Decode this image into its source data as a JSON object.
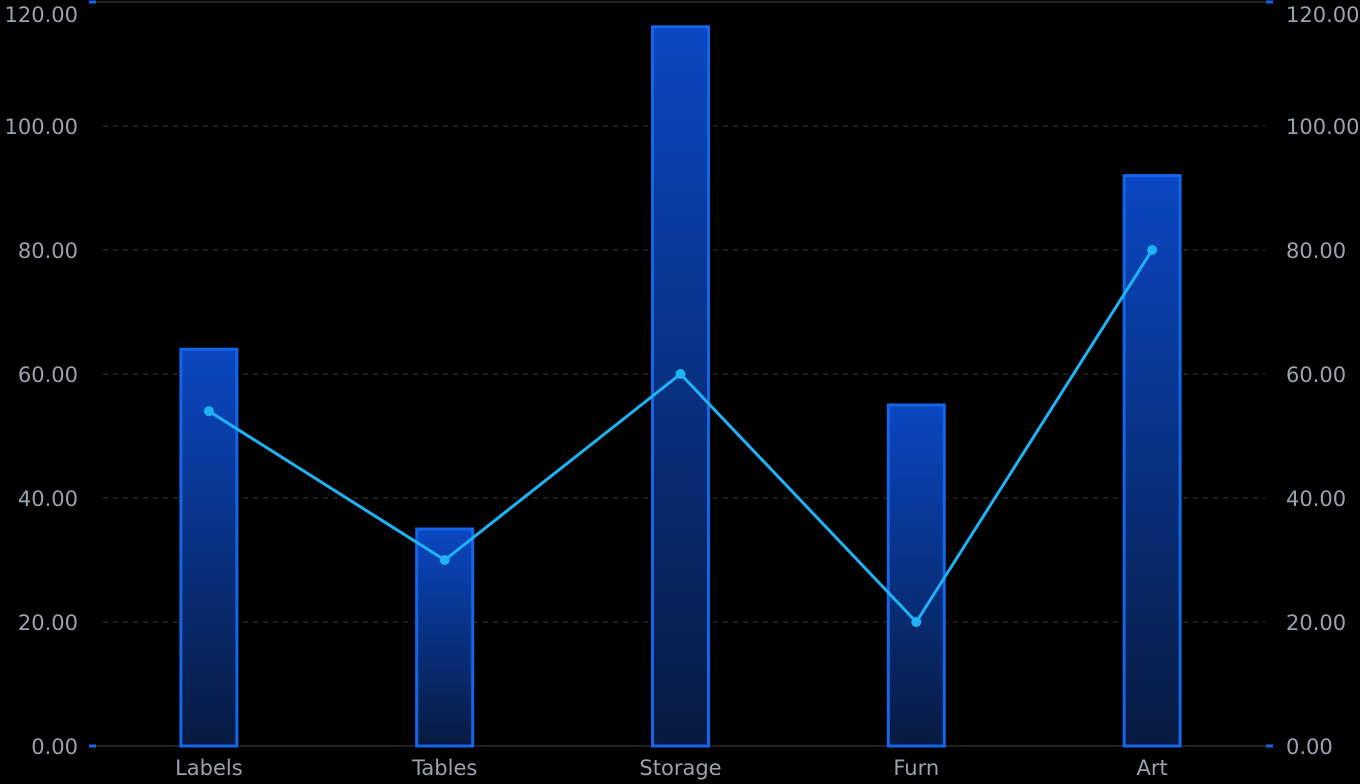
{
  "chart_data": {
    "type": "bar+line",
    "categories": [
      "Labels",
      "Tables",
      "Storage",
      "Furn",
      "Art"
    ],
    "series": [
      {
        "name": "bars",
        "type": "bar",
        "axis": "left",
        "values": [
          64,
          35,
          116,
          55,
          92
        ]
      },
      {
        "name": "line",
        "type": "line",
        "axis": "right",
        "values": [
          54,
          30,
          60,
          20,
          80
        ]
      }
    ],
    "y_left": {
      "min": 0,
      "max": 120,
      "ticks": [
        "0.00",
        "20.00",
        "40.00",
        "60.00",
        "80.00",
        "100.00",
        "120.00"
      ]
    },
    "y_right": {
      "min": 0,
      "max": 120,
      "ticks": [
        "0.00",
        "20.00",
        "40.00",
        "60.00",
        "80.00",
        "100.00",
        "120.00"
      ]
    },
    "grid": "dashed horizontal",
    "title": "",
    "xlabel": "",
    "ylabel": ""
  },
  "colors": {
    "background": "#000000",
    "bar_edge": "#1565e8",
    "bar_top": "#0a47c2",
    "bar_bottom": "#071a40",
    "line": "#1fb2f5",
    "grid": "#3a3a3a",
    "axis": "#2b2b2b",
    "tick_text": "#9aa3ad",
    "axis_marker": "#1565e8"
  }
}
